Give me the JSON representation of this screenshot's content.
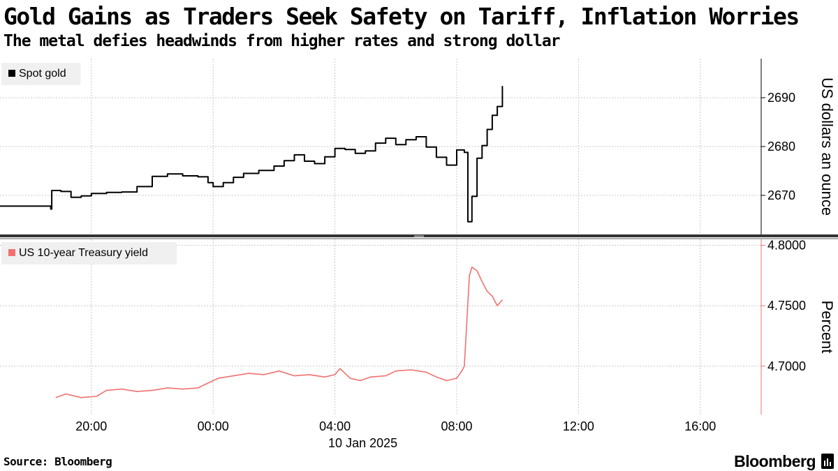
{
  "title": "Gold Gains as Traders Seek Safety on Tariff, Inflation Worries",
  "subtitle": "The metal defies headwinds from higher rates and strong dollar",
  "source": "Source: Bloomberg",
  "brand": "Bloomberg",
  "chart_data": [
    {
      "type": "line",
      "series": [
        {
          "name": "Spot gold",
          "color": "#000000",
          "points": [
            [
              "2025-01-09T17:00",
              2667.8
            ],
            [
              "2025-01-09T18:40",
              2667.2
            ],
            [
              "2025-01-09T18:42",
              2671.0
            ],
            [
              "2025-01-09T19:00",
              2670.8
            ],
            [
              "2025-01-09T19:20",
              2669.6
            ],
            [
              "2025-01-09T19:40",
              2669.9
            ],
            [
              "2025-01-09T20:00",
              2670.4
            ],
            [
              "2025-01-09T20:30",
              2670.6
            ],
            [
              "2025-01-09T21:00",
              2670.7
            ],
            [
              "2025-01-09T21:30",
              2671.8
            ],
            [
              "2025-01-09T22:00",
              2673.9
            ],
            [
              "2025-01-09T22:30",
              2674.4
            ],
            [
              "2025-01-09T23:00",
              2674.0
            ],
            [
              "2025-01-09T23:30",
              2673.8
            ],
            [
              "2025-01-09T23:50",
              2672.6
            ],
            [
              "2025-01-10T00:00",
              2671.8
            ],
            [
              "2025-01-10T00:20",
              2672.6
            ],
            [
              "2025-01-10T00:40",
              2673.7
            ],
            [
              "2025-01-10T01:00",
              2674.5
            ],
            [
              "2025-01-10T01:30",
              2675.1
            ],
            [
              "2025-01-10T02:00",
              2676.0
            ],
            [
              "2025-01-10T02:20",
              2677.1
            ],
            [
              "2025-01-10T02:40",
              2678.3
            ],
            [
              "2025-01-10T03:00",
              2677.0
            ],
            [
              "2025-01-10T03:20",
              2676.5
            ],
            [
              "2025-01-10T03:40",
              2677.9
            ],
            [
              "2025-01-10T04:00",
              2679.6
            ],
            [
              "2025-01-10T04:20",
              2679.4
            ],
            [
              "2025-01-10T04:40",
              2678.6
            ],
            [
              "2025-01-10T05:00",
              2679.1
            ],
            [
              "2025-01-10T05:20",
              2680.7
            ],
            [
              "2025-01-10T05:40",
              2681.7
            ],
            [
              "2025-01-10T06:00",
              2680.4
            ],
            [
              "2025-01-10T06:20",
              2681.4
            ],
            [
              "2025-01-10T06:40",
              2682.0
            ],
            [
              "2025-01-10T07:00",
              2679.9
            ],
            [
              "2025-01-10T07:20",
              2677.8
            ],
            [
              "2025-01-10T07:40",
              2676.2
            ],
            [
              "2025-01-10T08:00",
              2679.3
            ],
            [
              "2025-01-10T08:15",
              2678.8
            ],
            [
              "2025-01-10T08:22",
              2664.6
            ],
            [
              "2025-01-10T08:30",
              2669.8
            ],
            [
              "2025-01-10T08:40",
              2677.6
            ],
            [
              "2025-01-10T08:50",
              2680.2
            ],
            [
              "2025-01-10T09:00",
              2683.5
            ],
            [
              "2025-01-10T09:10",
              2686.4
            ],
            [
              "2025-01-10T09:20",
              2688.2
            ],
            [
              "2025-01-10T09:30",
              2692.4
            ]
          ]
        }
      ],
      "yaxis": {
        "label": "US dollars an ounce",
        "ticks": [
          2670,
          2680,
          2690
        ],
        "range": [
          2662,
          2698
        ],
        "position": "right"
      },
      "legend": "top-left",
      "grid": true
    },
    {
      "type": "line",
      "series": [
        {
          "name": "US 10-year Treasury yield",
          "color": "#f27070",
          "points": [
            [
              "2025-01-09T18:50",
              4.674
            ],
            [
              "2025-01-09T19:10",
              4.677
            ],
            [
              "2025-01-09T19:20",
              4.676
            ],
            [
              "2025-01-09T19:40",
              4.674
            ],
            [
              "2025-01-09T20:10",
              4.675
            ],
            [
              "2025-01-09T20:30",
              4.68
            ],
            [
              "2025-01-09T21:00",
              4.681
            ],
            [
              "2025-01-09T21:30",
              4.679
            ],
            [
              "2025-01-09T22:00",
              4.68
            ],
            [
              "2025-01-09T22:30",
              4.682
            ],
            [
              "2025-01-09T23:00",
              4.681
            ],
            [
              "2025-01-09T23:30",
              4.682
            ],
            [
              "2025-01-09T23:50",
              4.686
            ],
            [
              "2025-01-10T00:10",
              4.69
            ],
            [
              "2025-01-10T00:40",
              4.692
            ],
            [
              "2025-01-10T01:10",
              4.694
            ],
            [
              "2025-01-10T01:40",
              4.693
            ],
            [
              "2025-01-10T02:10",
              4.696
            ],
            [
              "2025-01-10T02:40",
              4.692
            ],
            [
              "2025-01-10T03:10",
              4.693
            ],
            [
              "2025-01-10T03:40",
              4.691
            ],
            [
              "2025-01-10T04:00",
              4.693
            ],
            [
              "2025-01-10T04:10",
              4.698
            ],
            [
              "2025-01-10T04:30",
              4.69
            ],
            [
              "2025-01-10T04:50",
              4.688
            ],
            [
              "2025-01-10T05:10",
              4.691
            ],
            [
              "2025-01-10T05:40",
              4.692
            ],
            [
              "2025-01-10T06:00",
              4.696
            ],
            [
              "2025-01-10T06:30",
              4.697
            ],
            [
              "2025-01-10T07:00",
              4.695
            ],
            [
              "2025-01-10T07:20",
              4.691
            ],
            [
              "2025-01-10T07:40",
              4.688
            ],
            [
              "2025-01-10T08:00",
              4.69
            ],
            [
              "2025-01-10T08:10",
              4.696
            ],
            [
              "2025-01-10T08:15",
              4.7
            ],
            [
              "2025-01-10T08:25",
              4.775
            ],
            [
              "2025-01-10T08:30",
              4.782
            ],
            [
              "2025-01-10T08:40",
              4.779
            ],
            [
              "2025-01-10T08:50",
              4.77
            ],
            [
              "2025-01-10T09:00",
              4.762
            ],
            [
              "2025-01-10T09:10",
              4.758
            ],
            [
              "2025-01-10T09:20",
              4.75
            ],
            [
              "2025-01-10T09:30",
              4.755
            ]
          ]
        }
      ],
      "yaxis": {
        "label": "Percent",
        "ticks": [
          4.7,
          4.75,
          4.8
        ],
        "tick_labels": [
          "4.7000",
          "4.7500",
          "4.8000"
        ],
        "range": [
          4.66,
          4.805
        ],
        "position": "right"
      },
      "legend": "top-left",
      "grid": true
    }
  ],
  "xaxis": {
    "ticks": [
      "2025-01-09T20:00",
      "2025-01-10T00:00",
      "2025-01-10T04:00",
      "2025-01-10T08:00",
      "2025-01-10T12:00",
      "2025-01-10T16:00"
    ],
    "tick_labels": [
      "20:00",
      "00:00",
      "04:00",
      "08:00",
      "12:00",
      "16:00"
    ],
    "date_label": "10 Jan 2025",
    "range": [
      "2025-01-09T17:00",
      "2025-01-10T18:00"
    ]
  }
}
